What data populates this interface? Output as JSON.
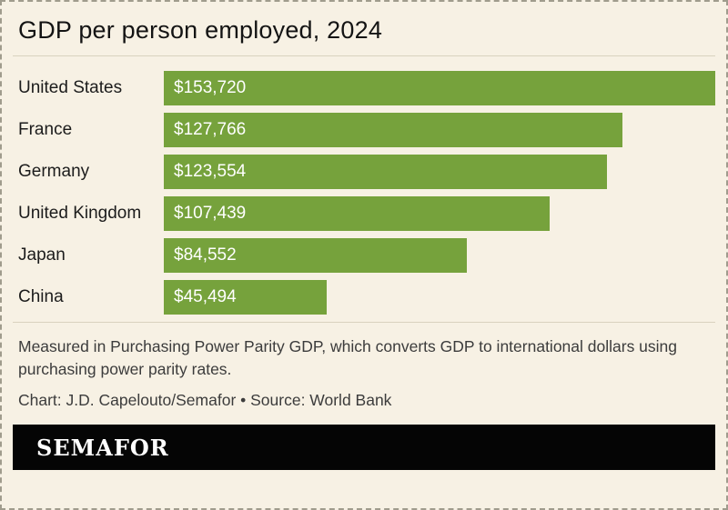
{
  "title": "GDP per person employed, 2024",
  "chart_data": {
    "type": "bar",
    "orientation": "horizontal",
    "title": "GDP per person employed, 2024",
    "categories": [
      "United States",
      "France",
      "Germany",
      "United Kingdom",
      "Japan",
      "China"
    ],
    "values": [
      153720,
      127766,
      123554,
      107439,
      84552,
      45494
    ],
    "value_labels": [
      "$153,720",
      "$127,766",
      "$123,554",
      "$107,439",
      "$84,552",
      "$45,494"
    ],
    "xlim": [
      0,
      153720
    ],
    "grid": false,
    "legend": false,
    "bar_color": "#76a23c"
  },
  "footer": {
    "note": "Measured in Purchasing Power Parity GDP, which converts GDP to international dollars using purchasing power parity rates.",
    "credit": "Chart: J.D. Capelouto/Semafor • Source: World Bank"
  },
  "logo": {
    "text": "SEMAFOR"
  },
  "colors": {
    "background": "#f7f1e4",
    "bar": "#76a23c",
    "logo_background": "#050505"
  }
}
